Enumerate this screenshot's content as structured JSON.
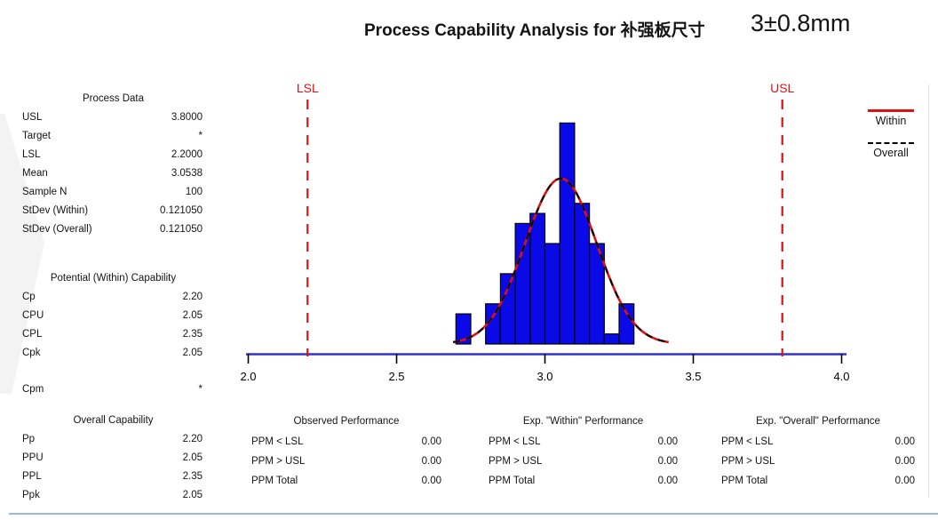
{
  "title": {
    "main": "Process Capability Analysis for 补强板尺寸",
    "spec": "3±0.8mm"
  },
  "spec_labels": {
    "lsl": "LSL",
    "usl": "USL"
  },
  "legend": [
    {
      "label": "Within",
      "style": "solid",
      "color": "#dd1111"
    },
    {
      "label": "Overall",
      "style": "dashed",
      "color": "#000000"
    }
  ],
  "panels": {
    "process_data": {
      "header": "Process Data",
      "rows": [
        {
          "label": "USL",
          "value": "3.8000"
        },
        {
          "label": "Target",
          "value": "*"
        },
        {
          "label": "LSL",
          "value": "2.2000"
        },
        {
          "label": "Mean",
          "value": "3.0538"
        },
        {
          "label": "Sample N",
          "value": "100"
        },
        {
          "label": "StDev (Within)",
          "value": "0.121050"
        },
        {
          "label": "StDev (Overall)",
          "value": "0.121050"
        }
      ]
    },
    "within_capability": {
      "header": "Potential (Within) Capability",
      "rows": [
        {
          "label": "Cp",
          "value": "2.20"
        },
        {
          "label": "CPU",
          "value": "2.05"
        },
        {
          "label": "CPL",
          "value": "2.35"
        },
        {
          "label": "Cpk",
          "value": "2.05"
        }
      ],
      "extra_rows": [
        {
          "label": "Cpm",
          "value": "*"
        }
      ]
    },
    "overall_capability": {
      "header": "Overall Capability",
      "rows": [
        {
          "label": "Pp",
          "value": "2.20"
        },
        {
          "label": "PPU",
          "value": "2.05"
        },
        {
          "label": "PPL",
          "value": "2.35"
        },
        {
          "label": "Ppk",
          "value": "2.05"
        }
      ]
    }
  },
  "performance_tables": [
    {
      "header": "Observed Performance",
      "rows": [
        {
          "label": "PPM < LSL",
          "value": "0.00"
        },
        {
          "label": "PPM > USL",
          "value": "0.00"
        },
        {
          "label": "PPM Total",
          "value": "0.00"
        }
      ]
    },
    {
      "header": "Exp. \"Within\" Performance",
      "rows": [
        {
          "label": "PPM < LSL",
          "value": "0.00"
        },
        {
          "label": "PPM > USL",
          "value": "0.00"
        },
        {
          "label": "PPM Total",
          "value": "0.00"
        }
      ]
    },
    {
      "header": "Exp. \"Overall\" Performance",
      "rows": [
        {
          "label": "PPM < LSL",
          "value": "0.00"
        },
        {
          "label": "PPM > USL",
          "value": "0.00"
        },
        {
          "label": "PPM Total",
          "value": "0.00"
        }
      ]
    }
  ],
  "chart_data": {
    "type": "bar",
    "subtype": "capability-histogram-with-normal-curves",
    "title": "Process Capability Analysis for 补强板尺寸 3±0.8mm",
    "xlabel": "",
    "ylabel": "",
    "x_ticks": [
      2.0,
      2.5,
      3.0,
      3.5,
      4.0
    ],
    "x_tick_labels": [
      "2.0",
      "2.5",
      "3.0",
      "3.5",
      "4.0"
    ],
    "xlim": [
      2.0,
      4.0
    ],
    "grid": false,
    "bin_width": 0.05,
    "bin_start": 2.7,
    "bin_counts": [
      3,
      0,
      4,
      7,
      12,
      13,
      10,
      22,
      14,
      10,
      1,
      4
    ],
    "sample_n": 100,
    "mean": 3.0538,
    "stdev_within": 0.12105,
    "stdev_overall": 0.12105,
    "lsl": 2.2,
    "usl": 3.8,
    "curves": [
      {
        "name": "Within",
        "color": "#dd1111",
        "style": "solid"
      },
      {
        "name": "Overall",
        "color": "#000000",
        "style": "dashed"
      }
    ],
    "legend_position": "right",
    "colors": {
      "bar_fill": "#0a0ae8",
      "bar_stroke": "#000000",
      "axis_line": "#3333cc",
      "tick": "#000000",
      "spec_line": "#dd1111",
      "spec_label": "#dd1111"
    }
  }
}
